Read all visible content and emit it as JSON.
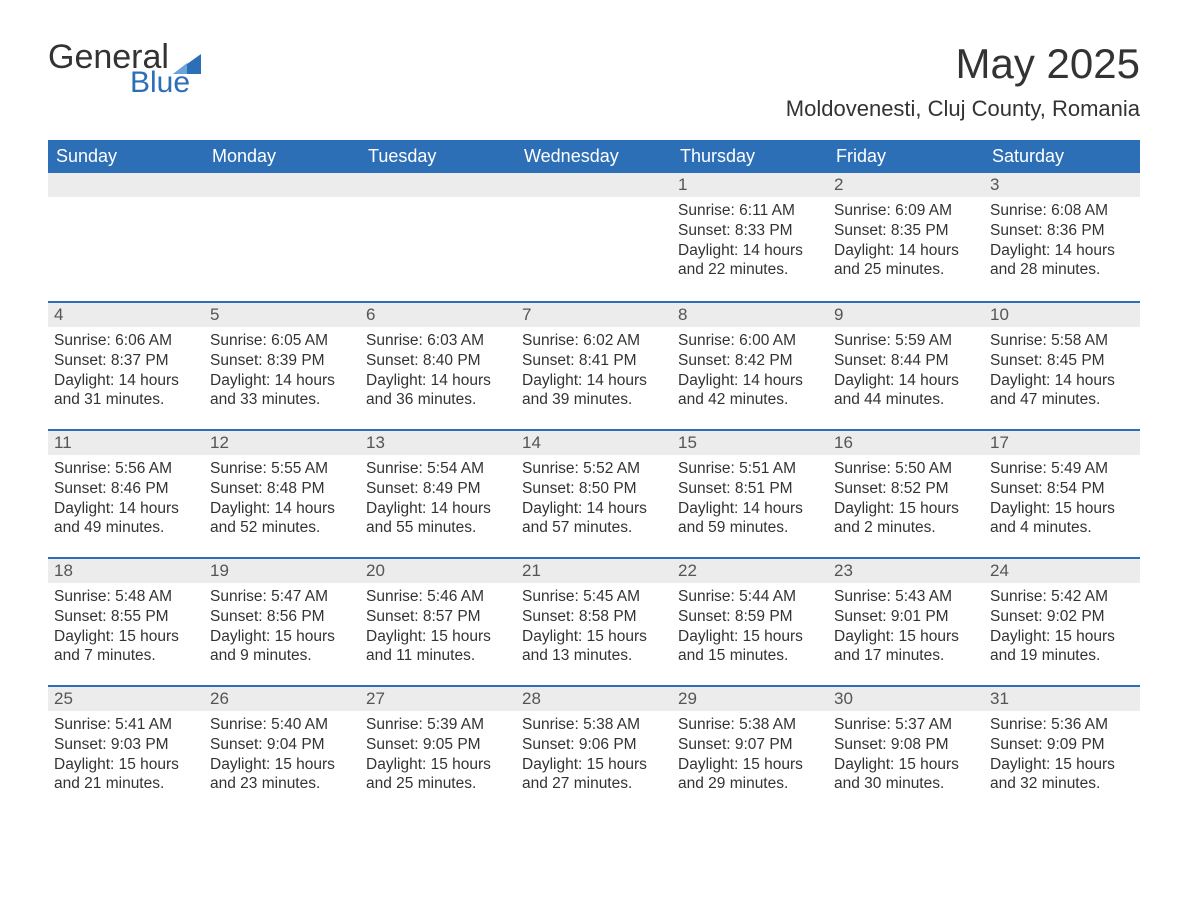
{
  "logo": {
    "text1": "General",
    "text2": "Blue",
    "triangle_color": "#2d6fb7"
  },
  "title": "May 2025",
  "location": "Moldovenesti, Cluj County, Romania",
  "colors": {
    "header_bg": "#2d6fb7",
    "header_text": "#ffffff",
    "daynum_bg": "#ececec",
    "row_border": "#2d6fb7",
    "body_text": "#333333"
  },
  "day_headers": [
    "Sunday",
    "Monday",
    "Tuesday",
    "Wednesday",
    "Thursday",
    "Friday",
    "Saturday"
  ],
  "weeks": [
    [
      null,
      null,
      null,
      null,
      {
        "n": "1",
        "sr": "6:11 AM",
        "ss": "8:33 PM",
        "dl": "14 hours and 22 minutes."
      },
      {
        "n": "2",
        "sr": "6:09 AM",
        "ss": "8:35 PM",
        "dl": "14 hours and 25 minutes."
      },
      {
        "n": "3",
        "sr": "6:08 AM",
        "ss": "8:36 PM",
        "dl": "14 hours and 28 minutes."
      }
    ],
    [
      {
        "n": "4",
        "sr": "6:06 AM",
        "ss": "8:37 PM",
        "dl": "14 hours and 31 minutes."
      },
      {
        "n": "5",
        "sr": "6:05 AM",
        "ss": "8:39 PM",
        "dl": "14 hours and 33 minutes."
      },
      {
        "n": "6",
        "sr": "6:03 AM",
        "ss": "8:40 PM",
        "dl": "14 hours and 36 minutes."
      },
      {
        "n": "7",
        "sr": "6:02 AM",
        "ss": "8:41 PM",
        "dl": "14 hours and 39 minutes."
      },
      {
        "n": "8",
        "sr": "6:00 AM",
        "ss": "8:42 PM",
        "dl": "14 hours and 42 minutes."
      },
      {
        "n": "9",
        "sr": "5:59 AM",
        "ss": "8:44 PM",
        "dl": "14 hours and 44 minutes."
      },
      {
        "n": "10",
        "sr": "5:58 AM",
        "ss": "8:45 PM",
        "dl": "14 hours and 47 minutes."
      }
    ],
    [
      {
        "n": "11",
        "sr": "5:56 AM",
        "ss": "8:46 PM",
        "dl": "14 hours and 49 minutes."
      },
      {
        "n": "12",
        "sr": "5:55 AM",
        "ss": "8:48 PM",
        "dl": "14 hours and 52 minutes."
      },
      {
        "n": "13",
        "sr": "5:54 AM",
        "ss": "8:49 PM",
        "dl": "14 hours and 55 minutes."
      },
      {
        "n": "14",
        "sr": "5:52 AM",
        "ss": "8:50 PM",
        "dl": "14 hours and 57 minutes."
      },
      {
        "n": "15",
        "sr": "5:51 AM",
        "ss": "8:51 PM",
        "dl": "14 hours and 59 minutes."
      },
      {
        "n": "16",
        "sr": "5:50 AM",
        "ss": "8:52 PM",
        "dl": "15 hours and 2 minutes."
      },
      {
        "n": "17",
        "sr": "5:49 AM",
        "ss": "8:54 PM",
        "dl": "15 hours and 4 minutes."
      }
    ],
    [
      {
        "n": "18",
        "sr": "5:48 AM",
        "ss": "8:55 PM",
        "dl": "15 hours and 7 minutes."
      },
      {
        "n": "19",
        "sr": "5:47 AM",
        "ss": "8:56 PM",
        "dl": "15 hours and 9 minutes."
      },
      {
        "n": "20",
        "sr": "5:46 AM",
        "ss": "8:57 PM",
        "dl": "15 hours and 11 minutes."
      },
      {
        "n": "21",
        "sr": "5:45 AM",
        "ss": "8:58 PM",
        "dl": "15 hours and 13 minutes."
      },
      {
        "n": "22",
        "sr": "5:44 AM",
        "ss": "8:59 PM",
        "dl": "15 hours and 15 minutes."
      },
      {
        "n": "23",
        "sr": "5:43 AM",
        "ss": "9:01 PM",
        "dl": "15 hours and 17 minutes."
      },
      {
        "n": "24",
        "sr": "5:42 AM",
        "ss": "9:02 PM",
        "dl": "15 hours and 19 minutes."
      }
    ],
    [
      {
        "n": "25",
        "sr": "5:41 AM",
        "ss": "9:03 PM",
        "dl": "15 hours and 21 minutes."
      },
      {
        "n": "26",
        "sr": "5:40 AM",
        "ss": "9:04 PM",
        "dl": "15 hours and 23 minutes."
      },
      {
        "n": "27",
        "sr": "5:39 AM",
        "ss": "9:05 PM",
        "dl": "15 hours and 25 minutes."
      },
      {
        "n": "28",
        "sr": "5:38 AM",
        "ss": "9:06 PM",
        "dl": "15 hours and 27 minutes."
      },
      {
        "n": "29",
        "sr": "5:38 AM",
        "ss": "9:07 PM",
        "dl": "15 hours and 29 minutes."
      },
      {
        "n": "30",
        "sr": "5:37 AM",
        "ss": "9:08 PM",
        "dl": "15 hours and 30 minutes."
      },
      {
        "n": "31",
        "sr": "5:36 AM",
        "ss": "9:09 PM",
        "dl": "15 hours and 32 minutes."
      }
    ]
  ],
  "labels": {
    "sunrise": "Sunrise:",
    "sunset": "Sunset:",
    "daylight": "Daylight:"
  }
}
